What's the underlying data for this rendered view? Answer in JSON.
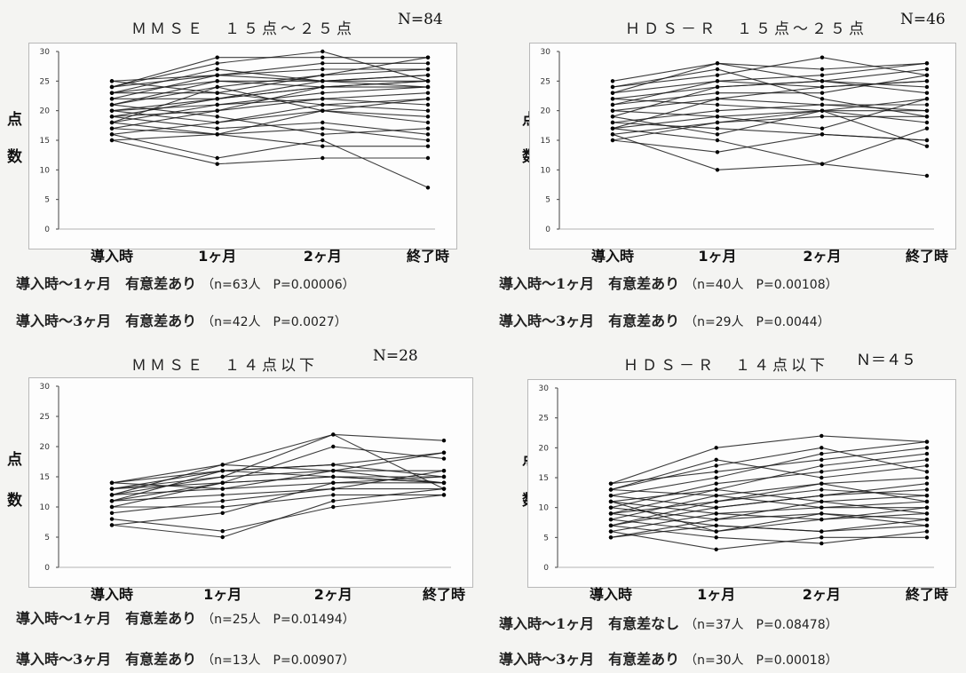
{
  "chart_data": [
    {
      "type": "line",
      "title": "ＭＭＳＥ　１５点～２５点",
      "n_label": "N=84",
      "ylabel": "点数",
      "ylim": [
        0,
        30
      ],
      "yticks": [
        0,
        5,
        10,
        15,
        20,
        25,
        30
      ],
      "categories": [
        "導入時",
        "1ヶ月",
        "2ヶ月",
        "終了時"
      ],
      "series": [
        {
          "values": [
            25,
            26,
            28,
            28
          ]
        },
        {
          "values": [
            24,
            29,
            29,
            29
          ]
        },
        {
          "values": [
            24,
            26,
            25,
            26
          ]
        },
        {
          "values": [
            23,
            27,
            25,
            25
          ]
        },
        {
          "values": [
            23,
            25,
            24,
            25
          ]
        },
        {
          "values": [
            22,
            26,
            27,
            27
          ]
        },
        {
          "values": [
            22,
            22,
            24,
            24
          ]
        },
        {
          "values": [
            21,
            25,
            25,
            26
          ]
        },
        {
          "values": [
            21,
            24,
            20,
            22
          ]
        },
        {
          "values": [
            20,
            22,
            24,
            25
          ]
        },
        {
          "values": [
            20,
            21,
            22,
            23
          ]
        },
        {
          "values": [
            20,
            18,
            20,
            19
          ]
        },
        {
          "values": [
            19,
            22,
            25,
            24
          ]
        },
        {
          "values": [
            19,
            20,
            22,
            21
          ]
        },
        {
          "values": [
            18,
            21,
            23,
            24
          ]
        },
        {
          "values": [
            18,
            16,
            17,
            15
          ]
        },
        {
          "values": [
            17,
            20,
            24,
            24
          ]
        },
        {
          "values": [
            17,
            16,
            14,
            14
          ]
        },
        {
          "values": [
            16,
            18,
            21,
            22
          ]
        },
        {
          "values": [
            16,
            12,
            15,
            7
          ]
        },
        {
          "values": [
            15,
            16,
            20,
            18
          ]
        },
        {
          "values": [
            15,
            11,
            12,
            12
          ]
        },
        {
          "values": [
            24,
            28,
            30,
            25
          ]
        },
        {
          "values": [
            21,
            19,
            16,
            17
          ]
        },
        {
          "values": [
            18,
            24,
            26,
            27
          ]
        },
        {
          "values": [
            23,
            23,
            21,
            20
          ]
        },
        {
          "values": [
            19,
            17,
            18,
            16
          ]
        },
        {
          "values": [
            25,
            23,
            26,
            29
          ]
        }
      ]
    },
    {
      "type": "line",
      "title": "ＨＤＳ－Ｒ　１５点～２５点",
      "n_label": "N=46",
      "ylabel": "点数",
      "ylim": [
        0,
        30
      ],
      "yticks": [
        0,
        5,
        10,
        15,
        20,
        25,
        30
      ],
      "categories": [
        "導入時",
        "1ヶ月",
        "2ヶ月",
        "終了時"
      ],
      "series": [
        {
          "values": [
            25,
            28,
            27,
            28
          ]
        },
        {
          "values": [
            24,
            26,
            29,
            26
          ]
        },
        {
          "values": [
            23,
            25,
            24,
            25
          ]
        },
        {
          "values": [
            22,
            24,
            25,
            23
          ]
        },
        {
          "values": [
            22,
            21,
            20,
            22
          ]
        },
        {
          "values": [
            21,
            25,
            26,
            28
          ]
        },
        {
          "values": [
            20,
            22,
            21,
            20
          ]
        },
        {
          "values": [
            20,
            19,
            20,
            18
          ]
        },
        {
          "values": [
            19,
            24,
            25,
            24
          ]
        },
        {
          "values": [
            18,
            20,
            21,
            21
          ]
        },
        {
          "values": [
            18,
            17,
            16,
            15
          ]
        },
        {
          "values": [
            17,
            22,
            24,
            25
          ]
        },
        {
          "values": [
            17,
            15,
            11,
            9
          ]
        },
        {
          "values": [
            16,
            10,
            11,
            17
          ]
        },
        {
          "values": [
            16,
            18,
            19,
            19
          ]
        },
        {
          "values": [
            15,
            18,
            20,
            20
          ]
        },
        {
          "values": [
            15,
            13,
            16,
            15
          ]
        },
        {
          "values": [
            24,
            27,
            22,
            19
          ]
        },
        {
          "values": [
            21,
            23,
            23,
            26
          ]
        },
        {
          "values": [
            19,
            16,
            20,
            14
          ]
        },
        {
          "values": [
            23,
            28,
            25,
            27
          ]
        },
        {
          "values": [
            17,
            19,
            17,
            22
          ]
        }
      ]
    },
    {
      "type": "line",
      "title": "ＭＭＳＥ　１４点以下",
      "n_label": "N=28",
      "ylabel": "点数",
      "ylim": [
        0,
        30
      ],
      "yticks": [
        0,
        5,
        10,
        15,
        20,
        25,
        30
      ],
      "categories": [
        "導入時",
        "1ヶ月",
        "2ヶ月",
        "終了時"
      ],
      "series": [
        {
          "values": [
            14,
            17,
            22,
            21
          ]
        },
        {
          "values": [
            14,
            16,
            17,
            19
          ]
        },
        {
          "values": [
            13,
            15,
            16,
            16
          ]
        },
        {
          "values": [
            13,
            14,
            15,
            14
          ]
        },
        {
          "values": [
            12,
            15,
            22,
            13
          ]
        },
        {
          "values": [
            12,
            13,
            14,
            14
          ]
        },
        {
          "values": [
            11,
            14,
            15,
            15
          ]
        },
        {
          "values": [
            11,
            12,
            13,
            13
          ]
        },
        {
          "values": [
            10,
            14,
            20,
            18
          ]
        },
        {
          "values": [
            10,
            10,
            12,
            12
          ]
        },
        {
          "values": [
            8,
            6,
            10,
            12
          ]
        },
        {
          "values": [
            7,
            5,
            11,
            13
          ]
        },
        {
          "values": [
            7,
            9,
            14,
            15
          ]
        },
        {
          "values": [
            13,
            16,
            15,
            14
          ]
        },
        {
          "values": [
            12,
            17,
            16,
            19
          ]
        },
        {
          "values": [
            14,
            13,
            16,
            14
          ]
        },
        {
          "values": [
            11,
            16,
            17,
            15
          ]
        },
        {
          "values": [
            9,
            11,
            13,
            16
          ]
        }
      ]
    },
    {
      "type": "line",
      "title": "ＨＤＳ－Ｒ　１４点以下",
      "n_label": "Ｎ＝４５",
      "ylabel": "点数",
      "ylim": [
        0,
        30
      ],
      "yticks": [
        0,
        5,
        10,
        15,
        20,
        25,
        30
      ],
      "categories": [
        "導入時",
        "1ヶ月",
        "2ヶ月",
        "終了時"
      ],
      "series": [
        {
          "values": [
            14,
            20,
            22,
            21
          ]
        },
        {
          "values": [
            14,
            16,
            18,
            20
          ]
        },
        {
          "values": [
            13,
            18,
            15,
            17
          ]
        },
        {
          "values": [
            13,
            12,
            14,
            15
          ]
        },
        {
          "values": [
            12,
            15,
            19,
            21
          ]
        },
        {
          "values": [
            12,
            10,
            12,
            13
          ]
        },
        {
          "values": [
            11,
            13,
            17,
            19
          ]
        },
        {
          "values": [
            11,
            9,
            10,
            11
          ]
        },
        {
          "values": [
            10,
            14,
            16,
            18
          ]
        },
        {
          "values": [
            10,
            8,
            11,
            9
          ]
        },
        {
          "values": [
            9,
            11,
            13,
            12
          ]
        },
        {
          "values": [
            9,
            7,
            6,
            8
          ]
        },
        {
          "values": [
            8,
            12,
            10,
            10
          ]
        },
        {
          "values": [
            8,
            6,
            9,
            7
          ]
        },
        {
          "values": [
            7,
            10,
            12,
            14
          ]
        },
        {
          "values": [
            7,
            5,
            4,
            6
          ]
        },
        {
          "values": [
            6,
            9,
            8,
            9
          ]
        },
        {
          "values": [
            6,
            3,
            5,
            5
          ]
        },
        {
          "values": [
            5,
            8,
            9,
            8
          ]
        },
        {
          "values": [
            5,
            7,
            6,
            7
          ]
        },
        {
          "values": [
            13,
            17,
            20,
            16
          ]
        },
        {
          "values": [
            11,
            6,
            8,
            10
          ]
        },
        {
          "values": [
            9,
            13,
            11,
            12
          ]
        },
        {
          "values": [
            7,
            11,
            14,
            11
          ]
        }
      ]
    }
  ],
  "notes": [
    {
      "line1": {
        "label": "導入時～1ヶ月　有意差あり",
        "detail": "（n=63人　P=0.00006）"
      },
      "line2": {
        "label": "導入時～3ヶ月　有意差あり",
        "detail": "（n=42人　P=0.0027）"
      }
    },
    {
      "line1": {
        "label": "導入時～1ヶ月　有意差あり",
        "detail": "（n=40人　P=0.00108）"
      },
      "line2": {
        "label": "導入時～3ヶ月　有意差あり",
        "detail": "（n=29人　P=0.0044）"
      }
    },
    {
      "line1": {
        "label": "導入時～1ヶ月　有意差あり",
        "detail": "（n=25人　P=0.01494）"
      },
      "line2": {
        "label": "導入時～3ヶ月　有意差あり",
        "detail": "（n=13人　P=0.00907）"
      }
    },
    {
      "line1": {
        "label": "導入時～1ヶ月　有意差なし",
        "detail": "（n=37人　P=0.08478）"
      },
      "line2": {
        "label": "導入時～3ヶ月　有意差あり",
        "detail": "（n=30人　P=0.00018）"
      }
    }
  ],
  "colors": {
    "line": "#1a1a1a",
    "marker": "#000000",
    "frame": "#b8b8b8",
    "background": "#fdfdfd"
  }
}
